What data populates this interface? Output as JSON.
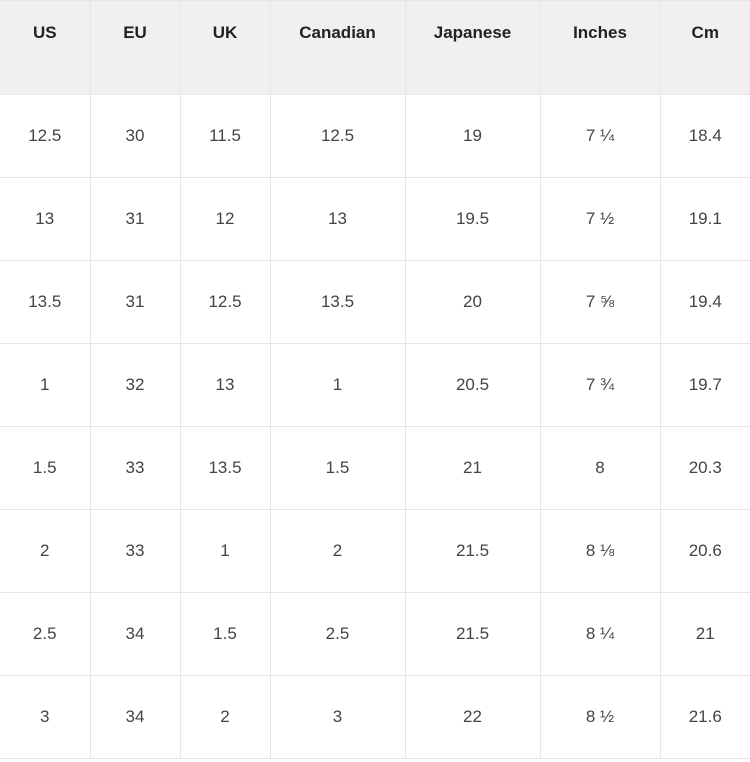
{
  "size_table": {
    "type": "table",
    "background_color": "#ffffff",
    "header_background": "#f0f0f0",
    "border_color": "#e6e6e6",
    "text_color": "#444444",
    "header_text_color": "#222222",
    "font_size": 17,
    "header_font_weight": 600,
    "columns": [
      {
        "label": "US",
        "width_pct": 12
      },
      {
        "label": "EU",
        "width_pct": 12
      },
      {
        "label": "UK",
        "width_pct": 12
      },
      {
        "label": "Canadian",
        "width_pct": 18
      },
      {
        "label": "Japanese",
        "width_pct": 18
      },
      {
        "label": "Inches",
        "width_pct": 16
      },
      {
        "label": "Cm",
        "width_pct": 12
      }
    ],
    "rows": [
      [
        "12.5",
        "30",
        "11.5",
        "12.5",
        "19",
        "7 ¼",
        "18.4"
      ],
      [
        "13",
        "31",
        "12",
        "13",
        "19.5",
        "7 ½",
        "19.1"
      ],
      [
        "13.5",
        "31",
        "12.5",
        "13.5",
        "20",
        "7 ⅝",
        "19.4"
      ],
      [
        "1",
        "32",
        "13",
        "1",
        "20.5",
        "7 ¾",
        "19.7"
      ],
      [
        "1.5",
        "33",
        "13.5",
        "1.5",
        "21",
        "8",
        "20.3"
      ],
      [
        "2",
        "33",
        "1",
        "2",
        "21.5",
        "8 ⅛",
        "20.6"
      ],
      [
        "2.5",
        "34",
        "1.5",
        "2.5",
        "21.5",
        "8 ¼",
        "21"
      ],
      [
        "3",
        "34",
        "2",
        "3",
        "22",
        "8 ½",
        "21.6"
      ]
    ]
  }
}
